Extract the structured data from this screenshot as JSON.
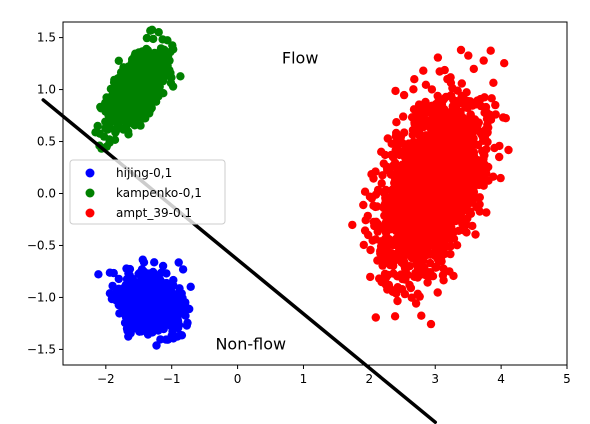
{
  "chart_data": {
    "type": "scatter",
    "title": "",
    "xlabel": "",
    "ylabel": "",
    "xlim": [
      -2.65,
      5.0
    ],
    "ylim": [
      -1.65,
      1.65
    ],
    "xticks": [
      -2,
      -1,
      0,
      1,
      2,
      3,
      4,
      5
    ],
    "yticks": [
      -1.5,
      -1.0,
      -0.5,
      0.0,
      0.5,
      1.0,
      1.5
    ],
    "xtick_labels": [
      "−2",
      "−1",
      "0",
      "1",
      "2",
      "3",
      "4",
      "5"
    ],
    "ytick_labels": [
      "−1.5",
      "−1.0",
      "−0.5",
      "0.0",
      "0.5",
      "1.0",
      "1.5"
    ],
    "grid": false,
    "legend_position": "center-left",
    "series": [
      {
        "name": "hijing-0,1",
        "color": "#0000ff",
        "center": [
          -1.35,
          -1.05
        ],
        "spread": [
          0.22,
          0.13
        ],
        "correlation": -0.2,
        "count": 900,
        "seed": 11
      },
      {
        "name": "kampenko-0,1",
        "color": "#008000",
        "center": [
          -1.55,
          1.0
        ],
        "spread": [
          0.2,
          0.17
        ],
        "correlation": 0.6,
        "count": 900,
        "seed": 23
      },
      {
        "name": "ampt_39-0.1",
        "color": "#ff0000",
        "center": [
          2.95,
          0.05
        ],
        "spread": [
          0.36,
          0.4
        ],
        "correlation": 0.45,
        "count": 2500,
        "seed": 37
      }
    ],
    "separator_line": {
      "from": [
        -2.95,
        0.9
      ],
      "to": [
        3.0,
        -2.2
      ],
      "color": "#000000"
    },
    "annotations": [
      {
        "text": "Flow",
        "x": 0.95,
        "y": 1.25
      },
      {
        "text": "Non-flow",
        "x": 0.2,
        "y": -1.5
      }
    ]
  }
}
